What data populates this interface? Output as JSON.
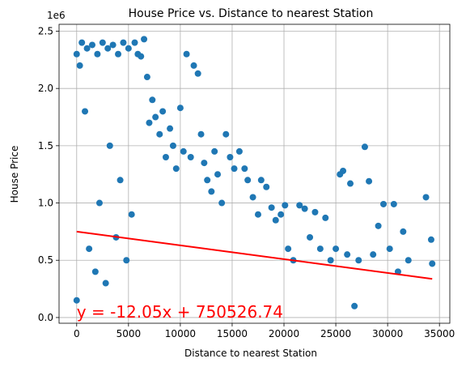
{
  "chart_data": {
    "type": "scatter",
    "title": "House Price vs. Distance to nearest Station",
    "xlabel": "Distance to nearest Station",
    "ylabel": "House Price",
    "y_offset_label": "1e6",
    "xlim": [
      -1700,
      36000
    ],
    "ylim": [
      -50000,
      2560000
    ],
    "x_ticks": [
      0,
      5000,
      10000,
      15000,
      20000,
      25000,
      30000,
      35000
    ],
    "x_tick_labels": [
      "0",
      "5000",
      "10000",
      "15000",
      "20000",
      "25000",
      "30000",
      "35000"
    ],
    "y_ticks": [
      0,
      500000,
      1000000,
      1500000,
      2000000,
      2500000
    ],
    "y_tick_labels": [
      "0.0",
      "0.5",
      "1.0",
      "1.5",
      "2.0",
      "2.5"
    ],
    "grid": true,
    "colors": {
      "points": "#1f77b4",
      "regression": "#ff0000",
      "annotation": "#ff0000"
    },
    "regression": {
      "slope": -12.05,
      "intercept": 750526.74,
      "x_range": [
        0,
        34300
      ]
    },
    "annotation": {
      "text": "y = -12.05x + 750526.74",
      "x": 0,
      "y": 0
    },
    "series": [
      {
        "points": [
          [
            0,
            150000
          ],
          [
            0,
            2300000
          ],
          [
            300,
            2200000
          ],
          [
            500,
            2400000
          ],
          [
            800,
            1800000
          ],
          [
            1000,
            2350000
          ],
          [
            1200,
            600000
          ],
          [
            1500,
            2380000
          ],
          [
            1800,
            400000
          ],
          [
            2000,
            2300000
          ],
          [
            2200,
            1000000
          ],
          [
            2500,
            2400000
          ],
          [
            2800,
            300000
          ],
          [
            3000,
            2350000
          ],
          [
            3200,
            1500000
          ],
          [
            3500,
            2380000
          ],
          [
            3800,
            700000
          ],
          [
            4000,
            2300000
          ],
          [
            4200,
            1200000
          ],
          [
            4500,
            2400000
          ],
          [
            4800,
            500000
          ],
          [
            5000,
            2350000
          ],
          [
            5300,
            900000
          ],
          [
            5600,
            2400000
          ],
          [
            5900,
            2300000
          ],
          [
            6200,
            2280000
          ],
          [
            6500,
            2430000
          ],
          [
            6800,
            2100000
          ],
          [
            7000,
            1700000
          ],
          [
            7300,
            1900000
          ],
          [
            7600,
            1750000
          ],
          [
            8000,
            1600000
          ],
          [
            8300,
            1800000
          ],
          [
            8600,
            1400000
          ],
          [
            9000,
            1650000
          ],
          [
            9300,
            1500000
          ],
          [
            9600,
            1300000
          ],
          [
            10000,
            1830000
          ],
          [
            10300,
            1450000
          ],
          [
            10600,
            2300000
          ],
          [
            11000,
            1400000
          ],
          [
            11300,
            2200000
          ],
          [
            11700,
            2130000
          ],
          [
            12000,
            1600000
          ],
          [
            12300,
            1350000
          ],
          [
            12600,
            1200000
          ],
          [
            13000,
            1100000
          ],
          [
            13300,
            1450000
          ],
          [
            13600,
            1250000
          ],
          [
            14000,
            1000000
          ],
          [
            14400,
            1600000
          ],
          [
            14800,
            1400000
          ],
          [
            15200,
            1300000
          ],
          [
            15700,
            1450000
          ],
          [
            16200,
            1300000
          ],
          [
            16500,
            1200000
          ],
          [
            17000,
            1050000
          ],
          [
            17500,
            900000
          ],
          [
            17800,
            1200000
          ],
          [
            18300,
            1140000
          ],
          [
            18800,
            960000
          ],
          [
            19200,
            850000
          ],
          [
            19700,
            900000
          ],
          [
            20100,
            980000
          ],
          [
            20400,
            600000
          ],
          [
            20900,
            500000
          ],
          [
            21500,
            980000
          ],
          [
            22000,
            950000
          ],
          [
            22500,
            700000
          ],
          [
            23000,
            920000
          ],
          [
            23500,
            600000
          ],
          [
            24000,
            870000
          ],
          [
            24500,
            500000
          ],
          [
            25000,
            600000
          ],
          [
            25400,
            1250000
          ],
          [
            25700,
            1280000
          ],
          [
            26100,
            550000
          ],
          [
            26400,
            1170000
          ],
          [
            26800,
            100000
          ],
          [
            27200,
            500000
          ],
          [
            27800,
            1490000
          ],
          [
            28200,
            1190000
          ],
          [
            28600,
            550000
          ],
          [
            29100,
            800000
          ],
          [
            29600,
            990000
          ],
          [
            30200,
            600000
          ],
          [
            30600,
            990000
          ],
          [
            31000,
            400000
          ],
          [
            31500,
            750000
          ],
          [
            32000,
            500000
          ],
          [
            33700,
            1050000
          ],
          [
            34200,
            680000
          ],
          [
            34300,
            470000
          ]
        ]
      }
    ]
  }
}
